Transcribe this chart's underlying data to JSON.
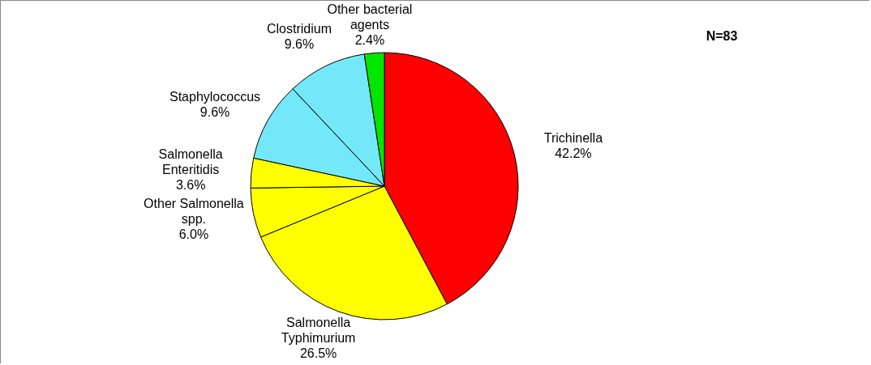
{
  "chart_data": {
    "type": "pie",
    "categories": [
      "Trichinella",
      "Salmonella Typhimurium",
      "Other Salmonella spp.",
      "Salmonella Enteritidis",
      "Staphylococcus",
      "Clostridium",
      "Other bacterial agents"
    ],
    "values": [
      42.2,
      26.5,
      6.0,
      3.6,
      9.6,
      9.6,
      2.4
    ],
    "value_labels": [
      "42.2%",
      "26.5%",
      "6.0%",
      "3.6%",
      "9.6%",
      "9.6%",
      "2.4%"
    ],
    "colors": [
      "#ff0000",
      "#ffff00",
      "#ffff00",
      "#ffff00",
      "#73e8f8",
      "#73e8f8",
      "#00e600"
    ],
    "annotations": [
      "N=83"
    ]
  }
}
